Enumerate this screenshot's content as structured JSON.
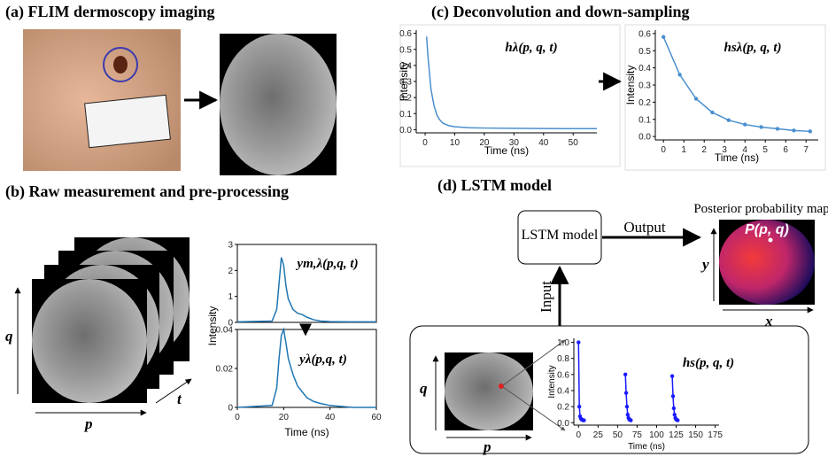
{
  "panels": {
    "a": {
      "title": "(a) FLIM dermoscopy imaging"
    },
    "b": {
      "title": "(b) Raw measurement and pre-processing",
      "axis_p": "p",
      "axis_q": "q",
      "axis_t": "t"
    },
    "c": {
      "title": "(c) Deconvolution and down-sampling"
    },
    "d": {
      "title": "(d) LSTM model",
      "model": "LSTM model",
      "output": "Output",
      "input": "Input",
      "map_title": "Posterior probability map",
      "map_label": "P(p, q)",
      "map_x": "x",
      "map_y": "y",
      "axis_p": "p",
      "axis_q": "q"
    }
  },
  "charts": [
    {
      "type": "line",
      "annotation": "hλ(p, q, t)",
      "xlabel": "Time (ns)",
      "ylabel": "Intensity",
      "color": "#4a8fcf",
      "markers": false,
      "x": [
        0.5,
        1,
        2,
        3,
        4,
        5,
        6,
        8,
        10,
        15,
        20,
        30,
        40,
        50,
        58
      ],
      "values": [
        0.58,
        0.45,
        0.25,
        0.15,
        0.09,
        0.06,
        0.04,
        0.025,
        0.018,
        0.012,
        0.01,
        0.008,
        0.007,
        0.006,
        0.006
      ],
      "xlim": [
        -3,
        58
      ],
      "ylim": [
        -0.02,
        0.62
      ],
      "xticks": [
        0,
        10,
        20,
        30,
        40,
        50
      ],
      "yticks": [
        {
          "value": 0,
          "label": "0.0"
        },
        {
          "value": 0.1,
          "label": "0.1"
        },
        {
          "value": 0.2,
          "label": "0.2"
        },
        {
          "value": 0.3,
          "label": "0.3"
        },
        {
          "value": 0.4,
          "label": "0.4"
        },
        {
          "value": 0.5,
          "label": "0.5"
        },
        {
          "value": 0.6,
          "label": "0.6"
        }
      ]
    },
    {
      "type": "line",
      "annotation": "hsλ(p, q, t)",
      "xlabel": "Time (ns)",
      "ylabel": "Intensity",
      "color": "#4a8fcf",
      "markers": true,
      "x": [
        0,
        0.8,
        1.6,
        2.4,
        3.2,
        4,
        4.8,
        5.6,
        6.4,
        7.2
      ],
      "values": [
        0.58,
        0.36,
        0.22,
        0.14,
        0.095,
        0.07,
        0.055,
        0.045,
        0.035,
        0.03
      ],
      "xlim": [
        -0.4,
        7.6
      ],
      "ylim": [
        -0.02,
        0.62
      ],
      "xticks": [
        0,
        1,
        2,
        3,
        4,
        5,
        6,
        7
      ],
      "yticks": [
        {
          "value": 0,
          "label": "0.0"
        },
        {
          "value": 0.1,
          "label": "0.1"
        },
        {
          "value": 0.2,
          "label": "0.2"
        },
        {
          "value": 0.3,
          "label": "0.3"
        },
        {
          "value": 0.4,
          "label": "0.4"
        },
        {
          "value": 0.5,
          "label": "0.5"
        },
        {
          "value": 0.6,
          "label": "0.6"
        }
      ]
    },
    {
      "type": "line",
      "annotation": "ym,λ(p,q, t)",
      "color": "#1f77b4",
      "markers": false,
      "boxed": true,
      "x": [
        0,
        15,
        17,
        18,
        19,
        20,
        21,
        22,
        24,
        26,
        28,
        30,
        33,
        36,
        40,
        50,
        60
      ],
      "values": [
        0.02,
        0.05,
        0.5,
        1.5,
        2.5,
        2.2,
        1.4,
        0.9,
        0.5,
        0.35,
        0.3,
        0.2,
        0.1,
        0.05,
        0.03,
        0.02,
        0.02
      ],
      "xlim": [
        0,
        60
      ],
      "ylim": [
        0,
        3
      ],
      "yticks": [
        0,
        1,
        2,
        3
      ]
    },
    {
      "type": "line",
      "annotation": "yλ(p,q, t)",
      "xlabel": "Time (ns)",
      "ylabel": "Intensity",
      "color": "#1f77b4",
      "markers": false,
      "boxed": true,
      "x": [
        0,
        15,
        17,
        18,
        19,
        20,
        21,
        22,
        24,
        26,
        28,
        30,
        33,
        36,
        40,
        50,
        60
      ],
      "values": [
        0,
        0.001,
        0.01,
        0.025,
        0.037,
        0.04,
        0.033,
        0.025,
        0.017,
        0.011,
        0.008,
        0.005,
        0.003,
        0.002,
        0.001,
        0,
        0
      ],
      "xlim": [
        0,
        60
      ],
      "ylim": [
        0,
        0.04
      ],
      "xticks": [
        0,
        20,
        40,
        60
      ],
      "yticks": [
        0,
        0.02,
        0.04
      ]
    },
    {
      "type": "line",
      "annotation": "hs(p, q, t)",
      "xlabel": "Time (ns)",
      "ylabel": "Intensity",
      "color": "#1a1aff",
      "markers": true,
      "x": [
        0,
        1,
        2,
        3,
        4,
        5,
        6,
        7,
        8,
        60,
        61,
        62,
        63,
        64,
        65,
        66,
        67,
        68,
        120,
        121,
        122,
        123,
        124,
        125,
        126,
        127
      ],
      "values": [
        1.0,
        0.2,
        0.08,
        0.05,
        0.04,
        0.035,
        0.03,
        0.03,
        null,
        0.6,
        0.37,
        0.2,
        0.1,
        0.06,
        0.04,
        0.035,
        0.03,
        null,
        0.58,
        0.33,
        0.18,
        0.1,
        0.06,
        0.04,
        0.035,
        0.03
      ],
      "xlim": [
        -6,
        180
      ],
      "ylim": [
        -0.03,
        1.05
      ],
      "xticks": [
        0,
        25,
        50,
        75,
        100,
        125,
        150,
        175
      ],
      "yticks": [
        {
          "value": 0,
          "label": "0.0"
        },
        {
          "value": 0.2,
          "label": "0.2"
        },
        {
          "value": 0.4,
          "label": "0.4"
        },
        {
          "value": 0.6,
          "label": "0.6"
        },
        {
          "value": 0.8,
          "label": "0.8"
        },
        {
          "value": 1,
          "label": "1.0"
        }
      ]
    }
  ]
}
